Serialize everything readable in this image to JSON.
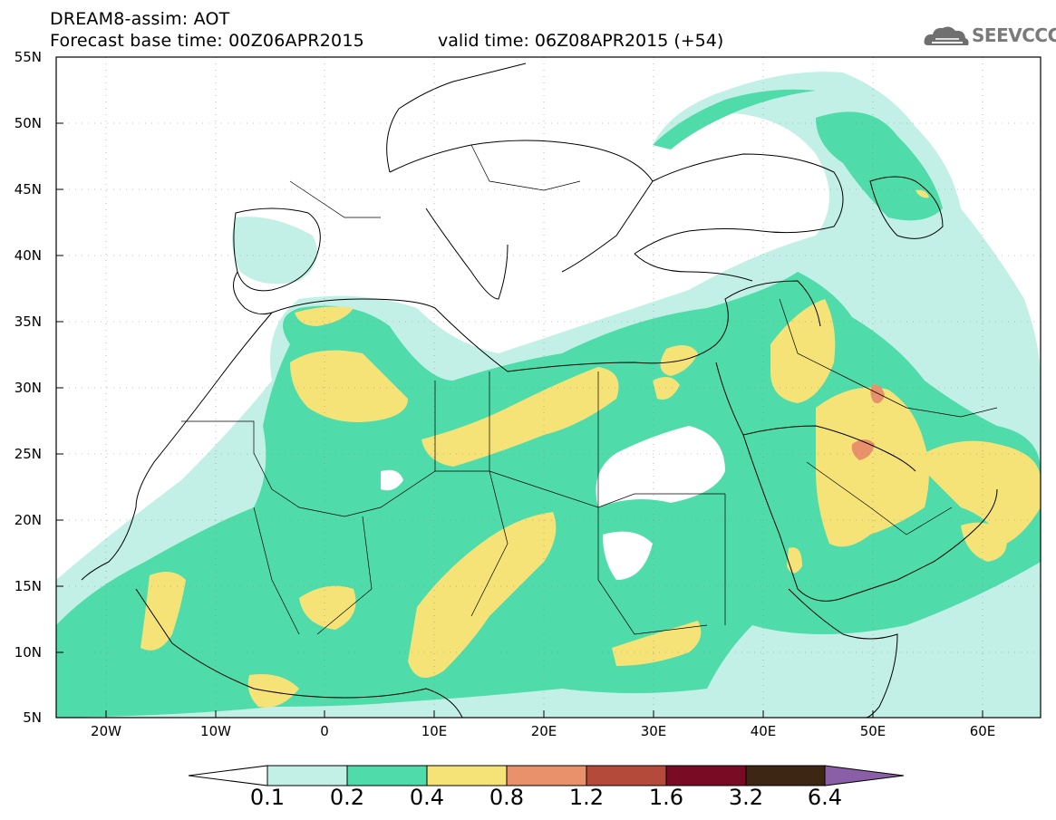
{
  "header": {
    "title_line1": "DREAM8-assim: AOT",
    "title_line2": "Forecast base time: 00Z06APR2015",
    "valid_time": "valid time: 06Z08APR2015 (+54)",
    "logo_text": "SEEVCCC"
  },
  "map": {
    "lat_labels": [
      "55N",
      "50N",
      "45N",
      "40N",
      "35N",
      "30N",
      "25N",
      "20N",
      "15N",
      "10N",
      "5N"
    ],
    "lon_labels": [
      "20W",
      "10W",
      "0",
      "10E",
      "20E",
      "30E",
      "40E",
      "50E",
      "60E"
    ]
  },
  "colorbar": {
    "labels": [
      "0.1",
      "0.2",
      "0.4",
      "0.8",
      "1.2",
      "1.6",
      "3.2",
      "6.4"
    ],
    "colors": [
      "#ffffff",
      "#c2f0e6",
      "#4fdcaa",
      "#f6e377",
      "#e8916a",
      "#b34a3a",
      "#7a0b24",
      "#3e2614",
      "#8a5fa8"
    ]
  }
}
